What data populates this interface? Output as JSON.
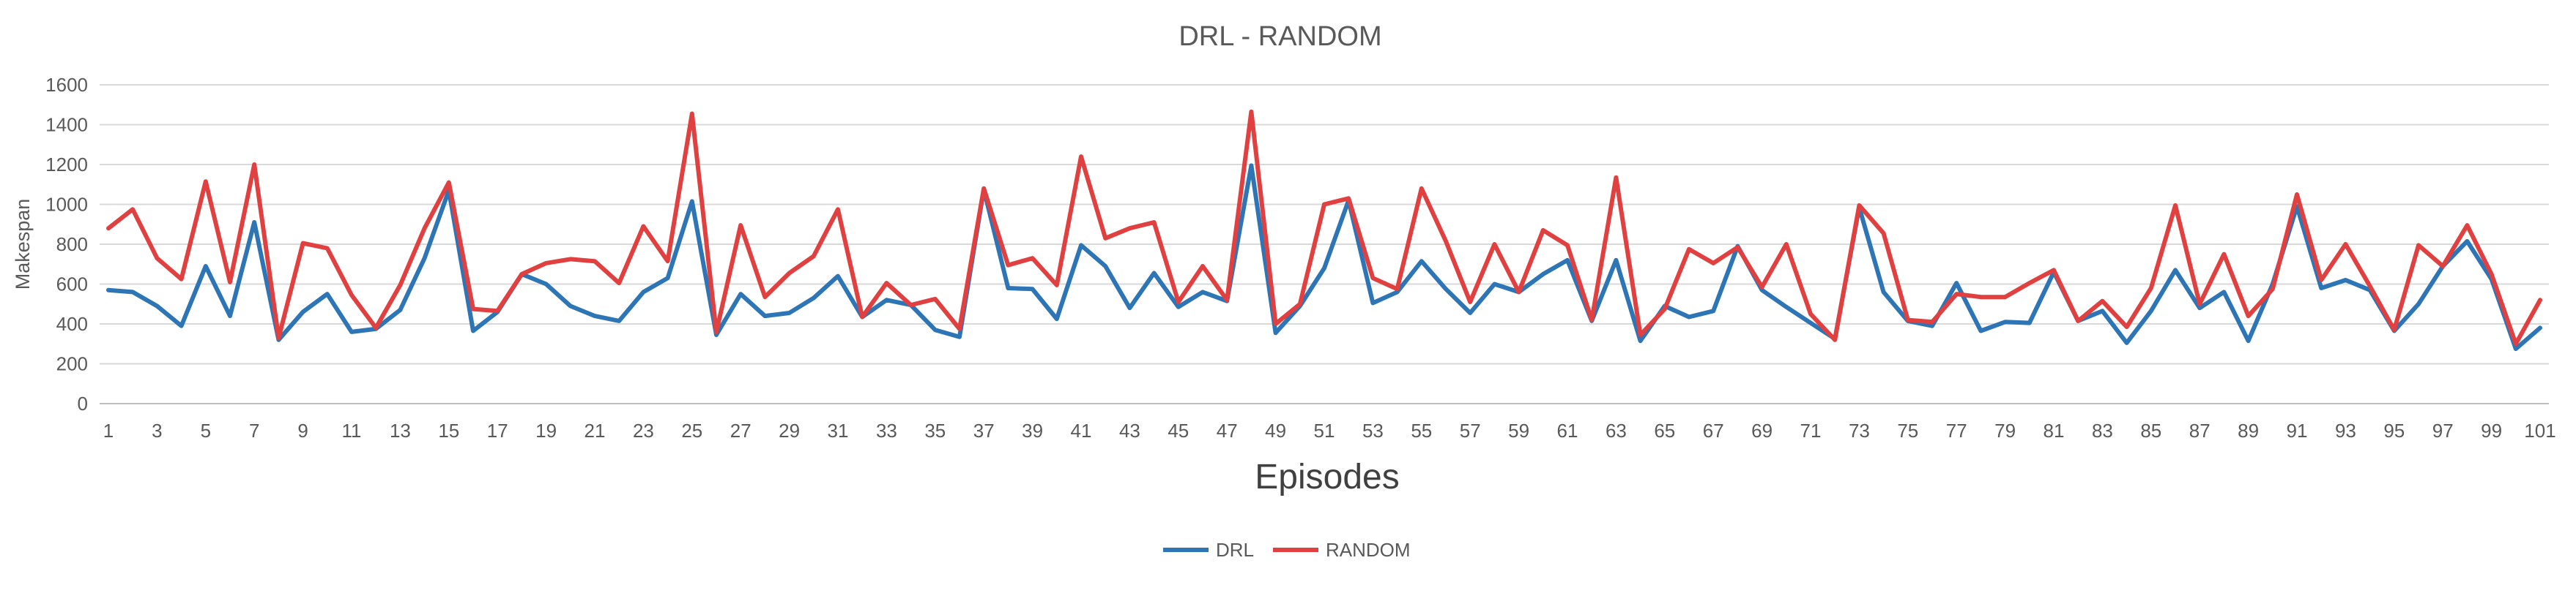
{
  "chart_data": {
    "type": "line",
    "title": "DRL - RANDOM",
    "xlabel": "Episodes",
    "ylabel": "Makespan",
    "ylim": [
      0,
      1600
    ],
    "y_ticks": [
      0,
      200,
      400,
      600,
      800,
      1000,
      1200,
      1400,
      1600
    ],
    "x_tick_labels": [
      "1",
      "3",
      "5",
      "7",
      "9",
      "11",
      "13",
      "15",
      "17",
      "19",
      "21",
      "23",
      "25",
      "27",
      "29",
      "31",
      "33",
      "35",
      "37",
      "39",
      "41",
      "43",
      "45",
      "47",
      "49",
      "51",
      "53",
      "55",
      "57",
      "59",
      "61",
      "63",
      "65",
      "67",
      "69",
      "71",
      "73",
      "75",
      "77",
      "79",
      "81",
      "83",
      "85",
      "87",
      "89",
      "91",
      "93",
      "95",
      "97",
      "99",
      "101"
    ],
    "x": [
      1,
      2,
      3,
      4,
      5,
      6,
      7,
      8,
      9,
      10,
      11,
      12,
      13,
      14,
      15,
      16,
      17,
      18,
      19,
      20,
      21,
      22,
      23,
      24,
      25,
      26,
      27,
      28,
      29,
      30,
      31,
      32,
      33,
      34,
      35,
      36,
      37,
      38,
      39,
      40,
      41,
      42,
      43,
      44,
      45,
      46,
      47,
      48,
      49,
      50,
      51,
      52,
      53,
      54,
      55,
      56,
      57,
      58,
      59,
      60,
      61,
      62,
      63,
      64,
      65,
      66,
      67,
      68,
      69,
      70,
      71,
      72,
      73,
      74,
      75,
      76,
      77,
      78,
      79,
      80,
      81,
      82,
      83,
      84,
      85,
      86,
      87,
      88,
      89,
      90,
      91,
      92,
      93,
      94,
      95,
      96,
      97,
      98,
      99,
      100,
      101
    ],
    "grid": true,
    "legend_position": "bottom",
    "series": [
      {
        "name": "DRL",
        "color": "#2E75B6",
        "values": [
          570,
          560,
          490,
          390,
          690,
          440,
          910,
          320,
          460,
          550,
          360,
          375,
          470,
          730,
          1070,
          365,
          460,
          650,
          600,
          490,
          440,
          415,
          560,
          630,
          1015,
          345,
          550,
          440,
          455,
          530,
          640,
          435,
          520,
          495,
          370,
          335,
          1075,
          580,
          575,
          425,
          795,
          690,
          480,
          655,
          485,
          560,
          515,
          1195,
          355,
          490,
          680,
          1020,
          505,
          560,
          715,
          575,
          455,
          600,
          560,
          650,
          720,
          415,
          720,
          315,
          490,
          435,
          465,
          790,
          570,
          485,
          405,
          325,
          985,
          560,
          415,
          390,
          605,
          365,
          410,
          405,
          660,
          415,
          465,
          305,
          465,
          670,
          480,
          560,
          315,
          600,
          990,
          580,
          620,
          570,
          365,
          500,
          690,
          815,
          625,
          275,
          380
        ]
      },
      {
        "name": "RANDOM",
        "color": "#E04040",
        "values": [
          880,
          975,
          730,
          625,
          1115,
          610,
          1200,
          330,
          805,
          780,
          545,
          380,
          595,
          880,
          1110,
          475,
          465,
          650,
          705,
          725,
          715,
          605,
          890,
          715,
          1455,
          360,
          895,
          535,
          655,
          740,
          975,
          435,
          605,
          495,
          525,
          375,
          1080,
          695,
          730,
          595,
          1240,
          830,
          880,
          910,
          510,
          690,
          520,
          1465,
          400,
          500,
          1000,
          1030,
          630,
          575,
          1080,
          815,
          510,
          800,
          560,
          870,
          795,
          420,
          1135,
          345,
          475,
          775,
          705,
          785,
          585,
          800,
          450,
          320,
          995,
          855,
          420,
          410,
          550,
          535,
          535,
          605,
          670,
          415,
          515,
          385,
          580,
          995,
          500,
          750,
          440,
          575,
          1050,
          620,
          800,
          590,
          370,
          795,
          690,
          895,
          650,
          300,
          520
        ]
      }
    ]
  }
}
